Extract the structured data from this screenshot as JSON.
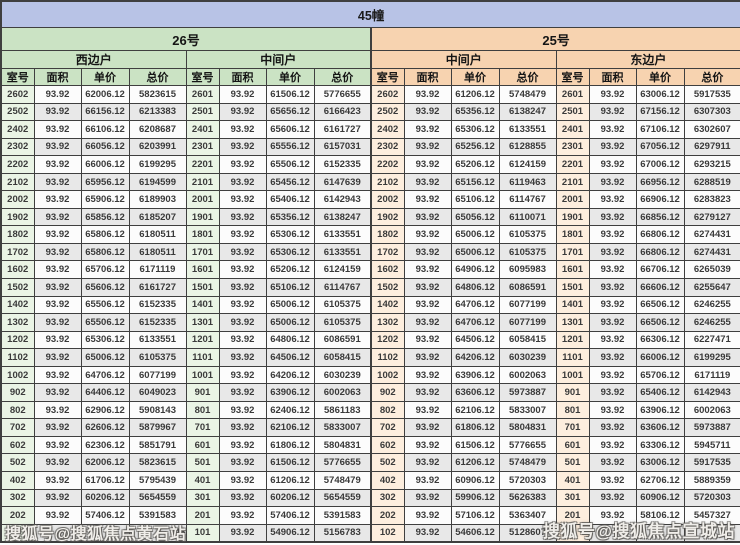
{
  "title": "45幢",
  "columns": [
    "室号",
    "面积",
    "单价",
    "总价"
  ],
  "groups": [
    {
      "label": "26号",
      "units": [
        {
          "label": "西边户"
        },
        {
          "label": "中间户"
        }
      ]
    },
    {
      "label": "25号",
      "units": [
        {
          "label": "中间户"
        },
        {
          "label": "东边户"
        }
      ]
    }
  ],
  "colors": {
    "title_bg": "#b8c3e6",
    "group_26_header_bg": "#cbe3c4",
    "group_26_room_bg": "#eaf4e5",
    "group_25_header_bg": "#f7d3b0",
    "group_25_room_bg": "#fdeede",
    "row_stripe": "#e8e8e8",
    "border": "#3f3f3f"
  },
  "watermarks": {
    "left": {
      "text": "搜狐号@搜狐焦点黄石站"
    },
    "right": {
      "text": "搜狐号@搜狐焦点宣城站"
    }
  },
  "sections": [
    {
      "group": "26号",
      "unit": "西边户",
      "rows": [
        [
          "2602",
          "93.92",
          "62006.12",
          "5823615"
        ],
        [
          "2502",
          "93.92",
          "66156.12",
          "6213383"
        ],
        [
          "2402",
          "93.92",
          "66106.12",
          "6208687"
        ],
        [
          "2302",
          "93.92",
          "66056.12",
          "6203991"
        ],
        [
          "2202",
          "93.92",
          "66006.12",
          "6199295"
        ],
        [
          "2102",
          "93.92",
          "65956.12",
          "6194599"
        ],
        [
          "2002",
          "93.92",
          "65906.12",
          "6189903"
        ],
        [
          "1902",
          "93.92",
          "65856.12",
          "6185207"
        ],
        [
          "1802",
          "93.92",
          "65806.12",
          "6180511"
        ],
        [
          "1702",
          "93.92",
          "65806.12",
          "6180511"
        ],
        [
          "1602",
          "93.92",
          "65706.12",
          "6171119"
        ],
        [
          "1502",
          "93.92",
          "65606.12",
          "6161727"
        ],
        [
          "1402",
          "93.92",
          "65506.12",
          "6152335"
        ],
        [
          "1302",
          "93.92",
          "65506.12",
          "6152335"
        ],
        [
          "1202",
          "93.92",
          "65306.12",
          "6133551"
        ],
        [
          "1102",
          "93.92",
          "65006.12",
          "6105375"
        ],
        [
          "1002",
          "93.92",
          "64706.12",
          "6077199"
        ],
        [
          "902",
          "93.92",
          "64406.12",
          "6049023"
        ],
        [
          "802",
          "93.92",
          "62906.12",
          "5908143"
        ],
        [
          "702",
          "93.92",
          "62606.12",
          "5879967"
        ],
        [
          "602",
          "93.92",
          "62306.12",
          "5851791"
        ],
        [
          "502",
          "93.92",
          "62006.12",
          "5823615"
        ],
        [
          "402",
          "93.92",
          "61706.12",
          "5795439"
        ],
        [
          "302",
          "93.92",
          "60206.12",
          "5654559"
        ],
        [
          "202",
          "93.92",
          "57406.12",
          "5391583"
        ],
        [
          "",
          "",
          "",
          "743"
        ]
      ]
    },
    {
      "group": "26号",
      "unit": "中间户",
      "rows": [
        [
          "2601",
          "93.92",
          "61506.12",
          "5776655"
        ],
        [
          "2501",
          "93.92",
          "65656.12",
          "6166423"
        ],
        [
          "2401",
          "93.92",
          "65606.12",
          "6161727"
        ],
        [
          "2301",
          "93.92",
          "65556.12",
          "6157031"
        ],
        [
          "2201",
          "93.92",
          "65506.12",
          "6152335"
        ],
        [
          "2101",
          "93.92",
          "65456.12",
          "6147639"
        ],
        [
          "2001",
          "93.92",
          "65406.12",
          "6142943"
        ],
        [
          "1901",
          "93.92",
          "65356.12",
          "6138247"
        ],
        [
          "1801",
          "93.92",
          "65306.12",
          "6133551"
        ],
        [
          "1701",
          "93.92",
          "65306.12",
          "6133551"
        ],
        [
          "1601",
          "93.92",
          "65206.12",
          "6124159"
        ],
        [
          "1501",
          "93.92",
          "65106.12",
          "6114767"
        ],
        [
          "1401",
          "93.92",
          "65006.12",
          "6105375"
        ],
        [
          "1301",
          "93.92",
          "65006.12",
          "6105375"
        ],
        [
          "1201",
          "93.92",
          "64806.12",
          "6086591"
        ],
        [
          "1101",
          "93.92",
          "64506.12",
          "6058415"
        ],
        [
          "1001",
          "93.92",
          "64206.12",
          "6030239"
        ],
        [
          "901",
          "93.92",
          "63906.12",
          "6002063"
        ],
        [
          "801",
          "93.92",
          "62406.12",
          "5861183"
        ],
        [
          "701",
          "93.92",
          "62106.12",
          "5833007"
        ],
        [
          "601",
          "93.92",
          "61806.12",
          "5804831"
        ],
        [
          "501",
          "93.92",
          "61506.12",
          "5776655"
        ],
        [
          "401",
          "93.92",
          "61206.12",
          "5748479"
        ],
        [
          "301",
          "93.92",
          "60206.12",
          "5654559"
        ],
        [
          "201",
          "93.92",
          "57406.12",
          "5391583"
        ],
        [
          "101",
          "93.92",
          "54906.12",
          "5156783"
        ]
      ]
    },
    {
      "group": "25号",
      "unit": "中间户",
      "rows": [
        [
          "2602",
          "93.92",
          "61206.12",
          "5748479"
        ],
        [
          "2502",
          "93.92",
          "65356.12",
          "6138247"
        ],
        [
          "2402",
          "93.92",
          "65306.12",
          "6133551"
        ],
        [
          "2302",
          "93.92",
          "65256.12",
          "6128855"
        ],
        [
          "2202",
          "93.92",
          "65206.12",
          "6124159"
        ],
        [
          "2102",
          "93.92",
          "65156.12",
          "6119463"
        ],
        [
          "2002",
          "93.92",
          "65106.12",
          "6114767"
        ],
        [
          "1902",
          "93.92",
          "65056.12",
          "6110071"
        ],
        [
          "1802",
          "93.92",
          "65006.12",
          "6105375"
        ],
        [
          "1702",
          "93.92",
          "65006.12",
          "6105375"
        ],
        [
          "1602",
          "93.92",
          "64906.12",
          "6095983"
        ],
        [
          "1502",
          "93.92",
          "64806.12",
          "6086591"
        ],
        [
          "1402",
          "93.92",
          "64706.12",
          "6077199"
        ],
        [
          "1302",
          "93.92",
          "64706.12",
          "6077199"
        ],
        [
          "1202",
          "93.92",
          "64506.12",
          "6058415"
        ],
        [
          "1102",
          "93.92",
          "64206.12",
          "6030239"
        ],
        [
          "1002",
          "93.92",
          "63906.12",
          "6002063"
        ],
        [
          "902",
          "93.92",
          "63606.12",
          "5973887"
        ],
        [
          "802",
          "93.92",
          "62106.12",
          "5833007"
        ],
        [
          "702",
          "93.92",
          "61806.12",
          "5804831"
        ],
        [
          "602",
          "93.92",
          "61506.12",
          "5776655"
        ],
        [
          "502",
          "93.92",
          "61206.12",
          "5748479"
        ],
        [
          "402",
          "93.92",
          "60906.12",
          "5720303"
        ],
        [
          "302",
          "93.92",
          "59906.12",
          "5626383"
        ],
        [
          "202",
          "93.92",
          "57106.12",
          "5363407"
        ],
        [
          "102",
          "93.92",
          "54606.12",
          "5128607"
        ]
      ]
    },
    {
      "group": "25号",
      "unit": "东边户",
      "rows": [
        [
          "2601",
          "93.92",
          "63006.12",
          "5917535"
        ],
        [
          "2501",
          "93.92",
          "67156.12",
          "6307303"
        ],
        [
          "2401",
          "93.92",
          "67106.12",
          "6302607"
        ],
        [
          "2301",
          "93.92",
          "67056.12",
          "6297911"
        ],
        [
          "2201",
          "93.92",
          "67006.12",
          "6293215"
        ],
        [
          "2101",
          "93.92",
          "66956.12",
          "6288519"
        ],
        [
          "2001",
          "93.92",
          "66906.12",
          "6283823"
        ],
        [
          "1901",
          "93.92",
          "66856.12",
          "6279127"
        ],
        [
          "1801",
          "93.92",
          "66806.12",
          "6274431"
        ],
        [
          "1701",
          "93.92",
          "66806.12",
          "6274431"
        ],
        [
          "1601",
          "93.92",
          "66706.12",
          "6265039"
        ],
        [
          "1501",
          "93.92",
          "66606.12",
          "6255647"
        ],
        [
          "1401",
          "93.92",
          "66506.12",
          "6246255"
        ],
        [
          "1301",
          "93.92",
          "66506.12",
          "6246255"
        ],
        [
          "1201",
          "93.92",
          "66306.12",
          "6227471"
        ],
        [
          "1101",
          "93.92",
          "66006.12",
          "6199295"
        ],
        [
          "1001",
          "93.92",
          "65706.12",
          "6171119"
        ],
        [
          "901",
          "93.92",
          "65406.12",
          "6142943"
        ],
        [
          "801",
          "93.92",
          "63906.12",
          "6002063"
        ],
        [
          "701",
          "93.92",
          "63606.12",
          "5973887"
        ],
        [
          "601",
          "93.92",
          "63306.12",
          "5945711"
        ],
        [
          "501",
          "93.92",
          "63006.12",
          "5917535"
        ],
        [
          "401",
          "93.92",
          "62706.12",
          "5889359"
        ],
        [
          "301",
          "93.92",
          "60906.12",
          "5720303"
        ],
        [
          "201",
          "93.92",
          "58106.12",
          "5457327"
        ],
        [
          "",
          "",
          "",
          ""
        ]
      ]
    }
  ]
}
